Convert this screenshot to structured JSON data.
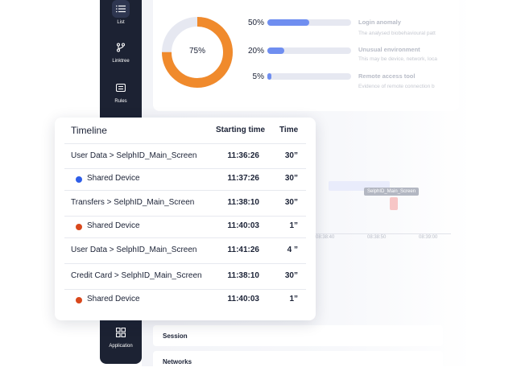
{
  "sidebar": {
    "items": [
      {
        "label": "List",
        "icon": "list-icon"
      },
      {
        "label": "Linktree",
        "icon": "linktree-icon"
      },
      {
        "label": "Rules",
        "icon": "rules-icon"
      },
      {
        "label": "Application",
        "icon": "grid-icon"
      }
    ]
  },
  "risk_summary": {
    "donut_value": 75,
    "donut_label": "75%",
    "donut_color": "#f08a2c",
    "track_color": "#e6e8f1",
    "bars": [
      {
        "pct_label": "50%",
        "value": 50,
        "title": "Login anomaly",
        "desc": "The analysed biobehavioural patt"
      },
      {
        "pct_label": "20%",
        "value": 20,
        "title": "Unusual environment",
        "desc": "This may be device, network, loca"
      },
      {
        "pct_label": "5%",
        "value": 5,
        "title": "Remote access tool",
        "desc": "Evidence of remote connection b"
      }
    ]
  },
  "session_chart": {
    "tooltip": "SelphID_Main_Screen",
    "ticks": [
      "08:38:40",
      "08:38:50",
      "08:39:00"
    ]
  },
  "sections": {
    "session": "Session",
    "networks": "Networks"
  },
  "timeline": {
    "title": "Timeline",
    "col_start": "Starting time",
    "col_time": "Time",
    "rows": [
      {
        "name": "User Data > SelphID_Main_Screen",
        "start": "11:36:26",
        "time": "30”",
        "dot": null
      },
      {
        "name": "Shared Device",
        "start": "11:37:26",
        "time": "30”",
        "dot": "#2f5ee8"
      },
      {
        "name": "Transfers > SelphID_Main_Screen",
        "start": "11:38:10",
        "time": "30”",
        "dot": null
      },
      {
        "name": "Shared Device",
        "start": "11:40:03",
        "time": "1”",
        "dot": "#d9481c"
      },
      {
        "name": "User Data > SelphID_Main_Screen",
        "start": "11:41:26",
        "time": "4 ”",
        "dot": null
      },
      {
        "name": "Credit Card > SelphID_Main_Screen",
        "start": "11:38:10",
        "time": "30”",
        "dot": null
      },
      {
        "name": "Shared Device",
        "start": "11:40:03",
        "time": "1”",
        "dot": "#d9481c"
      }
    ]
  }
}
